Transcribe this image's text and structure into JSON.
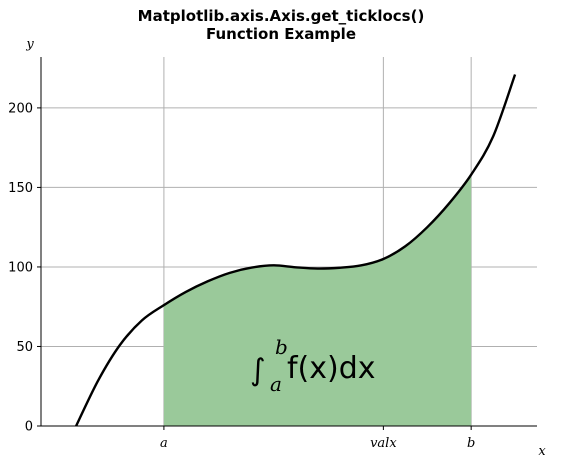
{
  "chart_data": {
    "type": "line",
    "title_line1": "Matplotlib.axis.Axis.get_ticklocs()",
    "title_line2": "Function Example",
    "xlabel": "x",
    "ylabel": "y",
    "xlim": [
      -0.8,
      10.5
    ],
    "ylim": [
      0,
      232
    ],
    "x_ticks": [
      {
        "value": 2,
        "label": "a"
      },
      {
        "value": 7,
        "label": "valx"
      },
      {
        "value": 9,
        "label": "b"
      }
    ],
    "y_ticks": [
      {
        "value": 0,
        "label": "0"
      },
      {
        "value": 50,
        "label": "50"
      },
      {
        "value": 100,
        "label": "100"
      },
      {
        "value": 150,
        "label": "150"
      },
      {
        "value": 200,
        "label": "200"
      }
    ],
    "series": [
      {
        "x": [
          0.0,
          0.5,
          1.0,
          1.5,
          2.0,
          2.5,
          3.0,
          3.5,
          4.0,
          4.5,
          5.0,
          5.5,
          6.0,
          6.5,
          7.0,
          7.5,
          8.0,
          8.5,
          9.0,
          9.5,
          10.0
        ],
        "y": [
          0.0,
          28.5,
          51.0,
          66.4,
          76.0,
          84.3,
          91.0,
          96.3,
          99.6,
          101.0,
          99.8,
          99.0,
          99.5,
          101.0,
          105.0,
          113.0,
          125.0,
          140.0,
          158.0,
          182.0,
          221.0
        ]
      }
    ],
    "fill": {
      "from_x": 2,
      "to_x": 9,
      "color": "#9ac99a"
    },
    "grid": true,
    "annotation": {
      "integral": "∫",
      "lower": "a",
      "upper": "b",
      "body": "f(x)dx"
    },
    "colors": {
      "line": "#000000",
      "grid": "#b0b0b0",
      "fill": "#9ac99a"
    }
  }
}
